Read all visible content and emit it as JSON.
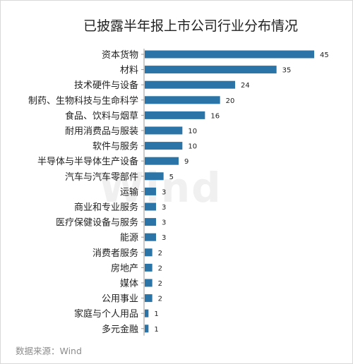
{
  "title": "已披露半年报上市公司行业分布情况",
  "source": "数据来源：Wind",
  "watermark": "Wind",
  "colors": {
    "bar": "#2a74a8",
    "axis": "#999999",
    "text": "#222222"
  },
  "chart_data": {
    "type": "bar",
    "orientation": "horizontal",
    "title": "已披露半年报上市公司行业分布情况",
    "categories": [
      "资本货物",
      "材料",
      "技术硬件与设备",
      "制药、生物科技与生命科学",
      "食品、饮料与烟草",
      "耐用消费品与服装",
      "软件与服务",
      "半导体与半导体生产设备",
      "汽车与汽车零部件",
      "运输",
      "商业和专业服务",
      "医疗保健设备与服务",
      "能源",
      "消费者服务",
      "房地产",
      "媒体",
      "公用事业",
      "家庭与个人用品",
      "多元金融"
    ],
    "values": [
      45,
      35,
      24,
      20,
      16,
      10,
      10,
      9,
      5,
      3,
      3,
      3,
      3,
      2,
      2,
      2,
      2,
      1,
      1
    ],
    "xlim": [
      0,
      45
    ],
    "grid": false,
    "legend": "none"
  }
}
